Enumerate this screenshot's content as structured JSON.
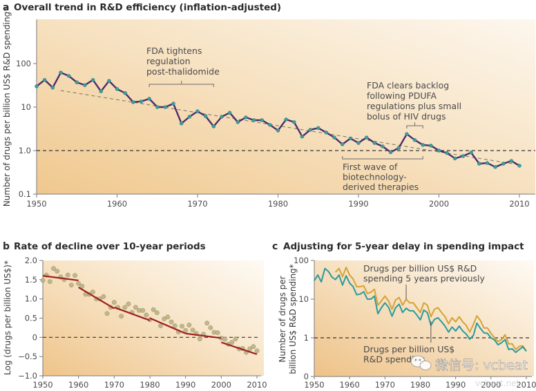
{
  "chart_data": [
    {
      "id": "a",
      "type": "line",
      "panel_label": "a",
      "title": "Overall trend in R&D efficiency (inflation-adjusted)",
      "xlabel": "",
      "ylabel": "Number of drugs per billion US$ R&D spending*",
      "yscale": "log",
      "xlim": [
        1950,
        2011
      ],
      "ylim": [
        0.1,
        200
      ],
      "x_ticks": [
        "1950",
        "1960",
        "1970",
        "1980",
        "1990",
        "2000",
        "2010"
      ],
      "y_ticks": [
        "0.1",
        "1.0",
        "10",
        "100"
      ],
      "reference_line": 1.0,
      "series": [
        {
          "name": "Drugs per billion US$ R&D spending",
          "color": "#4b2d6b",
          "marker_color": "#3aa0a0",
          "x": [
            1950,
            1951,
            1952,
            1953,
            1954,
            1955,
            1956,
            1957,
            1958,
            1959,
            1960,
            1961,
            1962,
            1963,
            1964,
            1965,
            1966,
            1967,
            1968,
            1969,
            1970,
            1971,
            1972,
            1973,
            1974,
            1975,
            1976,
            1977,
            1978,
            1979,
            1980,
            1981,
            1982,
            1983,
            1984,
            1985,
            1986,
            1987,
            1988,
            1989,
            1990,
            1991,
            1992,
            1993,
            1994,
            1995,
            1996,
            1997,
            1998,
            1999,
            2000,
            2001,
            2002,
            2003,
            2004,
            2005,
            2006,
            2007,
            2008,
            2009,
            2010
          ],
          "values": [
            30,
            42,
            28,
            62,
            52,
            37,
            32,
            42,
            23,
            40,
            26,
            21,
            13,
            13.5,
            15.5,
            10,
            10,
            12,
            4.2,
            6,
            8,
            6.2,
            3.6,
            6,
            7.4,
            4.5,
            5.8,
            5,
            5,
            3.9,
            2.9,
            5.2,
            4.5,
            2.1,
            3.0,
            3.3,
            2.6,
            2.0,
            1.4,
            1.9,
            1.5,
            2.0,
            1.5,
            1.25,
            0.92,
            1.15,
            2.4,
            1.75,
            1.35,
            1.3,
            1.0,
            0.88,
            0.66,
            0.75,
            0.9,
            0.5,
            0.52,
            0.42,
            0.5,
            0.58,
            0.45
          ]
        },
        {
          "name": "Trend",
          "style": "dashed",
          "color": "#7a7a6a",
          "x": [
            1950,
            2010
          ],
          "values": [
            40,
            0.47
          ]
        }
      ],
      "annotations": [
        {
          "text": [
            "FDA tightens",
            "regulation",
            "post-thalidomide"
          ],
          "x_range": [
            1964,
            1972
          ]
        },
        {
          "text": [
            "FDA clears backlog",
            "following PDUFA",
            "regulations plus small",
            "bolus of HIV drugs"
          ],
          "x_range": [
            1996,
            1998
          ]
        },
        {
          "text": [
            "First wave of",
            "biotechnology-",
            "derived therapies"
          ],
          "x_range": [
            1988,
            1998
          ]
        }
      ]
    },
    {
      "id": "b",
      "type": "scatter",
      "panel_label": "b",
      "title": "Rate of decline over 10-year periods",
      "xlabel": "",
      "ylabel": "Log (drugs per billion US$)*",
      "xlim": [
        1950,
        2010
      ],
      "ylim": [
        -1.0,
        2.0
      ],
      "x_ticks": [
        "1950",
        "1960",
        "1970",
        "1980",
        "1990",
        "2000",
        "2010"
      ],
      "y_ticks": [
        "2.0",
        "1.5",
        "1.0",
        "0.5",
        "0",
        "−0.5",
        "−1.0"
      ],
      "reference_line": 0,
      "points": {
        "color": "#b9b184",
        "x": [
          1950,
          1951,
          1952,
          1953,
          1954,
          1955,
          1956,
          1957,
          1958,
          1959,
          1960,
          1961,
          1962,
          1963,
          1964,
          1965,
          1966,
          1967,
          1968,
          1969,
          1970,
          1971,
          1972,
          1973,
          1974,
          1975,
          1976,
          1977,
          1978,
          1979,
          1980,
          1981,
          1982,
          1983,
          1984,
          1985,
          1986,
          1987,
          1988,
          1989,
          1990,
          1991,
          1992,
          1993,
          1994,
          1995,
          1996,
          1997,
          1998,
          1999,
          2000,
          2001,
          2002,
          2003,
          2004,
          2005,
          2006,
          2007,
          2008,
          2009,
          2010
        ],
        "values": [
          1.48,
          1.62,
          1.45,
          1.79,
          1.72,
          1.57,
          1.5,
          1.62,
          1.36,
          1.61,
          1.4,
          1.33,
          1.12,
          1.12,
          1.18,
          1.0,
          1.0,
          1.06,
          0.62,
          0.78,
          0.91,
          0.78,
          0.55,
          0.78,
          0.87,
          0.65,
          0.78,
          0.7,
          0.7,
          0.58,
          0.46,
          0.72,
          0.64,
          0.3,
          0.48,
          0.53,
          0.4,
          0.3,
          0.14,
          0.29,
          0.18,
          0.32,
          0.19,
          0.1,
          -0.04,
          0.08,
          0.37,
          0.25,
          0.13,
          0.12,
          -0.02,
          -0.05,
          -0.18,
          -0.13,
          -0.04,
          -0.3,
          -0.29,
          -0.39,
          -0.3,
          -0.24,
          -0.35
        ]
      },
      "fit_segments": {
        "color": "#9e1f1f",
        "segments": [
          {
            "x": [
              1950,
              1960
            ],
            "y": [
              1.6,
              1.48
            ]
          },
          {
            "x": [
              1960,
              1970
            ],
            "y": [
              1.3,
              0.75
            ]
          },
          {
            "x": [
              1970,
              1980
            ],
            "y": [
              0.78,
              0.44
            ]
          },
          {
            "x": [
              1980,
              1990
            ],
            "y": [
              0.5,
              0.1
            ]
          },
          {
            "x": [
              1990,
              2000
            ],
            "y": [
              0.1,
              -0.02
            ]
          },
          {
            "x": [
              2000,
              2010
            ],
            "y": [
              -0.13,
              -0.44
            ]
          }
        ]
      }
    },
    {
      "id": "c",
      "type": "line",
      "panel_label": "c",
      "title": "Adjusting for 5-year delay in spending impact",
      "xlabel": "",
      "ylabel": "Number of drugs per billion US$ R&D spending*",
      "yscale": "log",
      "xlim": [
        1950,
        2010
      ],
      "ylim": [
        0.1,
        100
      ],
      "x_ticks": [
        "1950",
        "1960",
        "1970",
        "1980",
        "1990",
        "2000",
        "2010"
      ],
      "y_ticks": [
        "0",
        "1",
        "10",
        "100"
      ],
      "reference_line": 1,
      "series": [
        {
          "name": "Drugs per billion US$ R&D spending 5 years previously",
          "color": "#d4a235",
          "x": [
            1956,
            1957,
            1958,
            1959,
            1960,
            1961,
            1962,
            1963,
            1964,
            1965,
            1966,
            1967,
            1968,
            1969,
            1970,
            1971,
            1972,
            1973,
            1974,
            1975,
            1976,
            1977,
            1978,
            1979,
            1980,
            1981,
            1982,
            1983,
            1984,
            1985,
            1986,
            1987,
            1988,
            1989,
            1990,
            1991,
            1992,
            1993,
            1994,
            1995,
            1996,
            1997,
            1998,
            1999,
            2000,
            2001,
            2002,
            2003,
            2004,
            2005,
            2006,
            2007,
            2008,
            2009,
            2010
          ],
          "values": [
            50,
            62,
            38,
            66,
            42,
            33,
            21,
            21,
            22,
            14,
            15,
            18,
            7,
            9,
            12,
            9,
            5.5,
            9.5,
            11,
            7,
            10,
            8,
            8,
            6,
            4.5,
            8,
            7,
            3.5,
            5.5,
            6,
            4.5,
            3.5,
            2.3,
            3.3,
            2.6,
            3.5,
            2.6,
            2.1,
            1.4,
            2.2,
            3.7,
            2.8,
            1.8,
            1.8,
            1.3,
            1.0,
            0.8,
            0.9,
            1.2,
            0.7,
            0.7,
            0.5,
            0.6,
            0.62,
            0.45
          ]
        },
        {
          "name": "Drugs per billion US$ R&D spending",
          "color": "#2a9a9a",
          "x": [
            1950,
            1951,
            1952,
            1953,
            1954,
            1955,
            1956,
            1957,
            1958,
            1959,
            1960,
            1961,
            1962,
            1963,
            1964,
            1965,
            1966,
            1967,
            1968,
            1969,
            1970,
            1971,
            1972,
            1973,
            1974,
            1975,
            1976,
            1977,
            1978,
            1979,
            1980,
            1981,
            1982,
            1983,
            1984,
            1985,
            1986,
            1987,
            1988,
            1989,
            1990,
            1991,
            1992,
            1993,
            1994,
            1995,
            1996,
            1997,
            1998,
            1999,
            2000,
            2001,
            2002,
            2003,
            2004,
            2005,
            2006,
            2007,
            2008,
            2009,
            2010
          ],
          "values": [
            30,
            42,
            28,
            62,
            52,
            37,
            32,
            42,
            23,
            40,
            26,
            21,
            13,
            13.5,
            15.5,
            10,
            10,
            12,
            4.2,
            6,
            8,
            6.2,
            3.6,
            6,
            7.4,
            4.5,
            5.8,
            5,
            5,
            3.9,
            2.9,
            5.2,
            4.5,
            2.1,
            3.0,
            3.3,
            2.6,
            2.0,
            1.4,
            1.9,
            1.5,
            2.0,
            1.5,
            1.25,
            0.92,
            1.15,
            2.4,
            1.75,
            1.35,
            1.3,
            1.0,
            0.88,
            0.66,
            0.75,
            0.9,
            0.5,
            0.52,
            0.42,
            0.5,
            0.58,
            0.45
          ]
        }
      ],
      "annotations": [
        {
          "text": [
            "Drugs per billion US$ R&D",
            "spending 5 years previously"
          ],
          "pointer_x": 1976
        },
        {
          "text": [
            "Drugs per billion US$",
            "R&D spending"
          ],
          "pointer_x": 1983
        }
      ]
    }
  ],
  "watermark": {
    "text": "微信号: vcbeat",
    "subtext": "vcbeat.net",
    "logo_text": "动脉网"
  }
}
